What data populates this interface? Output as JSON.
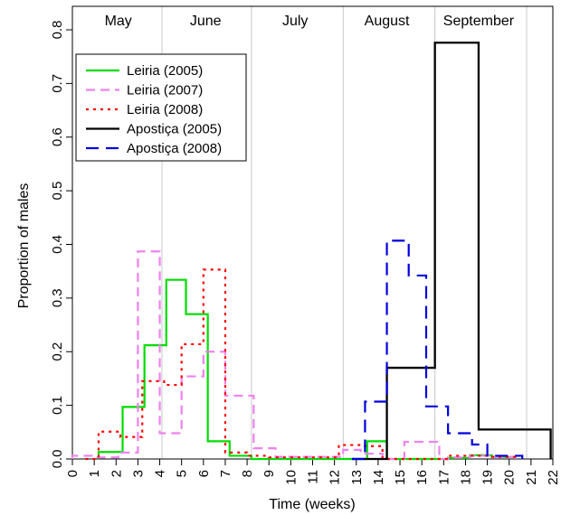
{
  "chart_data": {
    "type": "line",
    "title": "",
    "xlabel": "Time (weeks)",
    "ylabel": "Proportion of males",
    "xlim": [
      0,
      22
    ],
    "ylim": [
      0,
      0.8
    ],
    "x_ticks": [
      0,
      1,
      2,
      3,
      4,
      5,
      6,
      7,
      8,
      9,
      10,
      11,
      12,
      13,
      14,
      15,
      16,
      17,
      18,
      19,
      20,
      21,
      22
    ],
    "y_ticks": [
      0.0,
      0.1,
      0.2,
      0.3,
      0.4,
      0.5,
      0.6,
      0.7,
      0.8
    ],
    "month_boundaries": [
      4.1,
      8.2,
      12.4,
      16.6,
      20.8
    ],
    "months": [
      {
        "label": "May",
        "x": 2.1
      },
      {
        "label": "June",
        "x": 6.1
      },
      {
        "label": "July",
        "x": 10.2
      },
      {
        "label": "August",
        "x": 14.4
      },
      {
        "label": "September",
        "x": 18.6
      }
    ],
    "legend_position": "top-left",
    "series": [
      {
        "name": "Leiria (2005)",
        "color": "#00dd00",
        "dash": "solid",
        "steps": [
          [
            1.2,
            0.013
          ],
          [
            2.3,
            0.097
          ],
          [
            3.3,
            0.212
          ],
          [
            4.3,
            0.334
          ],
          [
            5.2,
            0.27
          ],
          [
            6.2,
            0.033
          ],
          [
            7.2,
            0.006
          ],
          [
            8.2,
            0.0
          ],
          [
            13.5,
            0.033
          ],
          [
            14.4,
            0.0
          ],
          [
            17.2,
            0.002
          ],
          [
            18.2,
            0.007
          ],
          [
            19.2,
            0.004
          ],
          [
            20.3,
            0.0
          ]
        ]
      },
      {
        "name": "Leiria (2007)",
        "color": "#ee82ee",
        "dash": "dashed",
        "steps": [
          [
            0.0,
            0.006
          ],
          [
            1.1,
            0.003
          ],
          [
            2.1,
            0.012
          ],
          [
            3.0,
            0.387
          ],
          [
            4.0,
            0.048
          ],
          [
            5.0,
            0.154
          ],
          [
            6.0,
            0.2
          ],
          [
            7.0,
            0.118
          ],
          [
            8.3,
            0.02
          ],
          [
            9.3,
            0.004
          ],
          [
            12.4,
            0.017
          ],
          [
            13.2,
            0.01
          ],
          [
            14.2,
            0.0
          ],
          [
            15.2,
            0.032
          ],
          [
            16.8,
            0.0
          ],
          [
            17.2,
            0.003
          ],
          [
            18.2,
            0.006
          ],
          [
            19.1,
            0.004
          ],
          [
            20.3,
            0.0
          ]
        ]
      },
      {
        "name": "Leiria (2008)",
        "color": "#ff0000",
        "dash": "dotted",
        "steps": [
          [
            0.6,
            0.0
          ],
          [
            1.2,
            0.051
          ],
          [
            2.2,
            0.041
          ],
          [
            3.2,
            0.145
          ],
          [
            4.2,
            0.138
          ],
          [
            5.0,
            0.214
          ],
          [
            6.0,
            0.353
          ],
          [
            7.0,
            0.012
          ],
          [
            8.0,
            0.006
          ],
          [
            9.0,
            0.003
          ],
          [
            12.2,
            0.026
          ],
          [
            13.2,
            0.024
          ],
          [
            14.2,
            0.0
          ],
          [
            17.2,
            0.006
          ],
          [
            18.2,
            0.006
          ],
          [
            19.1,
            0.004
          ],
          [
            20.4,
            0.0
          ]
        ]
      },
      {
        "name": "Apostiça (2005)",
        "color": "#000000",
        "dash": "solid",
        "steps": [
          [
            12.8,
            0.0
          ],
          [
            14.4,
            0.17
          ],
          [
            16.6,
            0.776
          ],
          [
            18.6,
            0.055
          ],
          [
            21.9,
            0.0
          ]
        ]
      },
      {
        "name": "Apostiça (2008)",
        "color": "#0000dd",
        "dash": "longdash",
        "steps": [
          [
            12.8,
            0.0
          ],
          [
            13.4,
            0.107
          ],
          [
            14.4,
            0.407
          ],
          [
            15.4,
            0.342
          ],
          [
            16.2,
            0.098
          ],
          [
            17.2,
            0.048
          ],
          [
            18.3,
            0.027
          ],
          [
            19.0,
            0.006
          ],
          [
            20.6,
            0.0
          ]
        ]
      }
    ]
  }
}
